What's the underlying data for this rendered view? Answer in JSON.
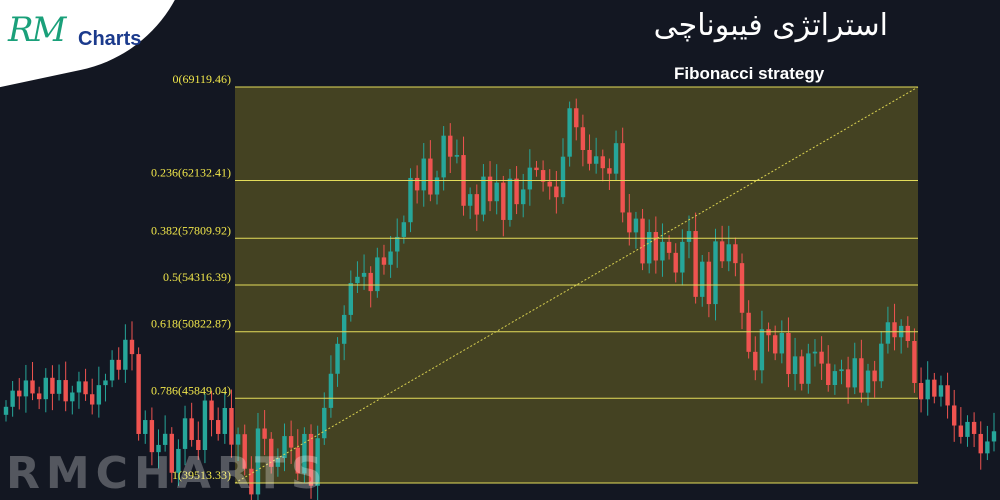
{
  "branding": {
    "logo_rm": "RM",
    "logo_charts": "Charts",
    "watermark": "RMCHARTS"
  },
  "header": {
    "title_fa": "استراتژی فیبوناچی",
    "subtitle": "Fibonacci strategy"
  },
  "colors": {
    "background": "#131722",
    "fib_zone": "#4d4a22",
    "fib_line": "#e3dc5a",
    "fib_label": "#f0e64a",
    "trend_line": "#d8d050",
    "up_candle": "#26a69a",
    "down_candle": "#ef5350"
  },
  "chart_data": {
    "type": "candlestick",
    "title": "Fibonacci strategy",
    "fib_retracement": {
      "levels": [
        {
          "ratio": 0,
          "price": 69119.46,
          "label": "0(69119.46)"
        },
        {
          "ratio": 0.236,
          "price": 62132.41,
          "label": "0.236(62132.41)"
        },
        {
          "ratio": 0.382,
          "price": 57809.92,
          "label": "0.382(57809.92)"
        },
        {
          "ratio": 0.5,
          "price": 54316.39,
          "label": "0.5(54316.39)"
        },
        {
          "ratio": 0.618,
          "price": 50822.87,
          "label": "0.618(50822.87)"
        },
        {
          "ratio": 0.786,
          "price": 45849.04,
          "label": "0.786(45849.04)"
        },
        {
          "ratio": 1,
          "price": 39513.33,
          "label": "1(39513.33)"
        }
      ],
      "trend_line": {
        "from_price": 39513.33,
        "to_price": 69119.46
      }
    },
    "candles_close": [
      45210,
      46420,
      45990,
      47180,
      46210,
      45780,
      47380,
      46180,
      47210,
      45620,
      46280,
      47110,
      46150,
      45380,
      46830,
      47180,
      48720,
      47980,
      50220,
      49150,
      43180,
      44220,
      41820,
      42360,
      43190,
      40280,
      42060,
      44350,
      42730,
      41980,
      45680,
      44220,
      43180,
      45120,
      42380,
      43160,
      40580,
      38660,
      43590,
      42820,
      40720,
      41380,
      43020,
      42160,
      40220,
      43180,
      39310,
      42860,
      45130,
      47680,
      49920,
      52080,
      54460,
      54930,
      55220,
      53860,
      56380,
      55830,
      56820,
      57910,
      59010,
      62320,
      61390,
      63770,
      61080,
      62360,
      65480,
      63910,
      64030,
      60240,
      61110,
      59580,
      62420,
      60580,
      61970,
      59180,
      62270,
      60360,
      61460,
      63090,
      62910,
      62040,
      61680,
      60880,
      63910,
      67530,
      66110,
      64410,
      63380,
      63940,
      63050,
      62640,
      64920,
      59740,
      58250,
      59280,
      55930,
      58280,
      56150,
      57540,
      56720,
      55250,
      57540,
      58350,
      53430,
      56060,
      52890,
      57580,
      56090,
      57360,
      55950,
      52240,
      49320,
      47940,
      51010,
      50560,
      49200,
      50730,
      47660,
      48980,
      46930,
      49200,
      49330,
      48440,
      46840,
      47880,
      48010,
      46660,
      48840,
      46270,
      47920,
      47120,
      49930,
      51530,
      50410,
      51260,
      50130,
      46990,
      45770,
      47240,
      45970,
      46820,
      45310,
      43810,
      42960,
      44080,
      43180,
      41730,
      42620,
      43380
    ]
  }
}
